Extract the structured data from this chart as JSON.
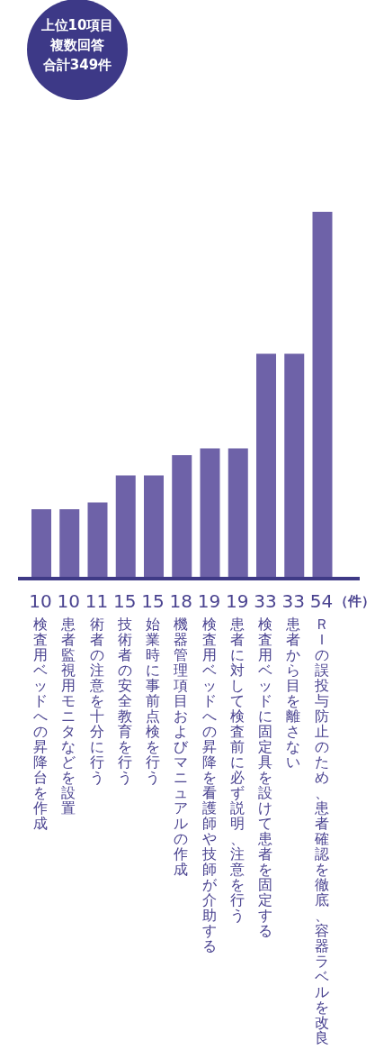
{
  "chart_data": {
    "type": "bar",
    "categories": [
      "検査用ベッドへの昇降台を作成",
      "患者監視用モニタなどを設置",
      "術者の注意を十分に行う",
      "技術者の安全教育を行う",
      "始業時に事前点検を行う",
      "機器管理項目およびマニュアルの作成",
      "検査用ベッドへの昇降を看護師や技師が介助する",
      "患者に対して検査前に必ず説明、注意を行う",
      "検査用ベッドに固定具を設けて患者を固定する",
      "患者から目を離さない",
      "ＲＩの誤投与防止のため、患者確認を徹底、容器ラベルを改良"
    ],
    "values": [
      10,
      10,
      11,
      15,
      15,
      18,
      19,
      19,
      33,
      33,
      54
    ],
    "color": "#6e62a8",
    "data_labels": true,
    "relative": false,
    "annotations": [
      "上位10項目",
      "複数回答",
      "合計349件",
      "（件）"
    ]
  }
}
